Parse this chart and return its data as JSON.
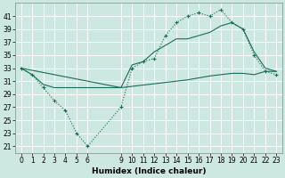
{
  "bg_color": "#cce8e0",
  "grid_color": "#ffffff",
  "line_color": "#1a6b5a",
  "xlabel": "Humidex (Indice chaleur)",
  "ylim": [
    20,
    43
  ],
  "xlim": [
    -0.5,
    23.5
  ],
  "yticks": [
    21,
    23,
    25,
    27,
    29,
    31,
    33,
    35,
    37,
    39,
    41
  ],
  "xticks": [
    0,
    1,
    2,
    3,
    4,
    5,
    6,
    9,
    10,
    11,
    12,
    13,
    14,
    15,
    16,
    17,
    18,
    19,
    20,
    21,
    22,
    23
  ],
  "line1_x": [
    0,
    1,
    2,
    3,
    4,
    5,
    6,
    9,
    10,
    11,
    12,
    13,
    14,
    15,
    16,
    17,
    18,
    19,
    20,
    21,
    22,
    23
  ],
  "line1_y": [
    33,
    32,
    30,
    28,
    26.5,
    23,
    21,
    27,
    33,
    34,
    34.5,
    38,
    40,
    41,
    41.5,
    41,
    42,
    40,
    39,
    35,
    32.5,
    32
  ],
  "line2_x": [
    0,
    9,
    10,
    11,
    12,
    13,
    14,
    15,
    16,
    17,
    18,
    19,
    20,
    21,
    22,
    23
  ],
  "line2_y": [
    33,
    30,
    33.5,
    34,
    35.5,
    36.5,
    37.5,
    37.5,
    38,
    38.5,
    39.5,
    40,
    39,
    35.5,
    33,
    32.5
  ],
  "line3_x": [
    0,
    1,
    2,
    3,
    4,
    5,
    6,
    9,
    10,
    11,
    12,
    13,
    14,
    15,
    16,
    17,
    18,
    19,
    20,
    21,
    22,
    23
  ],
  "line3_y": [
    33,
    32,
    30.5,
    30,
    30,
    30,
    30,
    30,
    30.2,
    30.4,
    30.6,
    30.8,
    31,
    31.2,
    31.5,
    31.8,
    32,
    32.2,
    32.2,
    32,
    32.5,
    32.5
  ],
  "figsize": [
    3.2,
    2.0
  ],
  "dpi": 100,
  "tick_fontsize": 5.5,
  "xlabel_fontsize": 6.5
}
